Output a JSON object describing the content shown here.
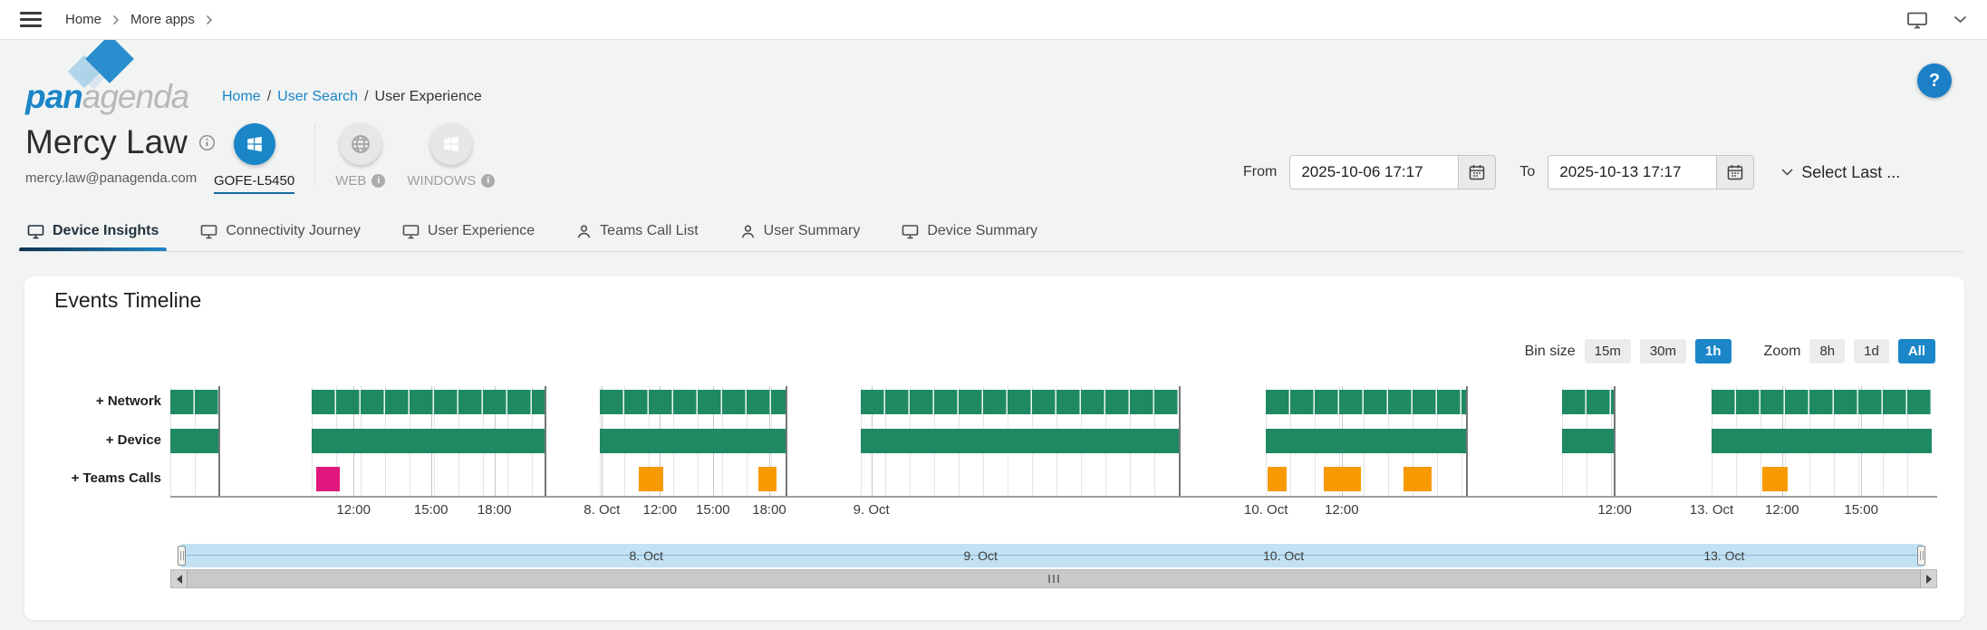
{
  "topbar": {
    "breadcrumb": [
      "Home",
      "More apps"
    ]
  },
  "header": {
    "logo": {
      "bold": "pan",
      "light": "agenda"
    },
    "breadcrumb": {
      "links": [
        "Home",
        "User Search"
      ],
      "current": "User Experience",
      "separator": "/"
    },
    "user": {
      "name": "Mercy Law",
      "email": "mercy.law@panagenda.com"
    },
    "devices": [
      {
        "label": "GOFE-L5450",
        "icon": "windows",
        "active": true,
        "info": false
      },
      {
        "label": "WEB",
        "icon": "globe",
        "active": false,
        "info": true
      },
      {
        "label": "WINDOWS",
        "icon": "windows",
        "active": false,
        "info": true
      }
    ],
    "date_range": {
      "from_label": "From",
      "from_value": "2025-10-06 17:17",
      "to_label": "To",
      "to_value": "2025-10-13 17:17",
      "preset_label": "Select Last ..."
    },
    "help_label": "?"
  },
  "tabs": [
    {
      "label": "Device Insights",
      "icon": "monitor",
      "active": true
    },
    {
      "label": "Connectivity Journey",
      "icon": "monitor",
      "active": false
    },
    {
      "label": "User Experience",
      "icon": "monitor",
      "active": false
    },
    {
      "label": "Teams Call List",
      "icon": "person",
      "active": false
    },
    {
      "label": "User Summary",
      "icon": "person",
      "active": false
    },
    {
      "label": "Device Summary",
      "icon": "monitor",
      "active": false
    }
  ],
  "panel": {
    "title": "Events Timeline",
    "bin_size": {
      "label": "Bin size",
      "options": [
        "15m",
        "30m",
        "1h"
      ],
      "active": "1h"
    },
    "zoom": {
      "label": "Zoom",
      "options": [
        "8h",
        "1d",
        "All"
      ],
      "active": "All"
    }
  },
  "chart_data": {
    "type": "timeline",
    "title": "Events Timeline",
    "x_range": {
      "from": "2025-10-06 17:17",
      "to": "2025-10-13 17:17"
    },
    "bin_size": "1h",
    "rows": [
      {
        "label": "+ Network"
      },
      {
        "label": "+ Device"
      },
      {
        "label": "+ Teams Calls"
      }
    ],
    "colors": {
      "availability": "#1F8A62",
      "teams_call": "#F69A00",
      "teams_call_poor": "#E0187E",
      "grid": "#E3E6E6",
      "boundary": "#70777A",
      "accent_blue": "#1B86C8"
    },
    "segments": [
      {
        "start": 0.0,
        "end": 0.028
      },
      {
        "start": 0.08,
        "end": 0.213
      },
      {
        "start": 0.244,
        "end": 0.35
      },
      {
        "start": 0.392,
        "end": 0.573
      },
      {
        "start": 0.622,
        "end": 0.736
      },
      {
        "start": 0.79,
        "end": 0.82
      },
      {
        "start": 0.875,
        "end": 1.0
      }
    ],
    "teams_calls": [
      {
        "from": 0.083,
        "to": 0.096,
        "quality": "poor"
      },
      {
        "from": 0.266,
        "to": 0.28,
        "quality": "good"
      },
      {
        "from": 0.334,
        "to": 0.344,
        "quality": "good"
      },
      {
        "from": 0.623,
        "to": 0.634,
        "quality": "good"
      },
      {
        "from": 0.655,
        "to": 0.676,
        "quality": "good"
      },
      {
        "from": 0.7,
        "to": 0.716,
        "quality": "good"
      },
      {
        "from": 0.904,
        "to": 0.918,
        "quality": "good"
      }
    ],
    "x_labels": [
      {
        "text": "12:00",
        "pos": 0.104
      },
      {
        "text": "15:00",
        "pos": 0.148
      },
      {
        "text": "18:00",
        "pos": 0.184
      },
      {
        "text": "8. Oct",
        "pos": 0.245
      },
      {
        "text": "12:00",
        "pos": 0.278
      },
      {
        "text": "15:00",
        "pos": 0.308
      },
      {
        "text": "18:00",
        "pos": 0.34
      },
      {
        "text": "9. Oct",
        "pos": 0.398
      },
      {
        "text": "10. Oct",
        "pos": 0.622
      },
      {
        "text": "12:00",
        "pos": 0.665
      },
      {
        "text": "12:00",
        "pos": 0.82
      },
      {
        "text": "13. Oct",
        "pos": 0.875
      },
      {
        "text": "12:00",
        "pos": 0.915
      },
      {
        "text": "15:00",
        "pos": 0.96
      }
    ],
    "navigator": {
      "labels": [
        {
          "text": "8. Oct",
          "pos": 0.267
        },
        {
          "text": "9. Oct",
          "pos": 0.459
        },
        {
          "text": "10. Oct",
          "pos": 0.633
        },
        {
          "text": "13. Oct",
          "pos": 0.886
        }
      ]
    }
  }
}
